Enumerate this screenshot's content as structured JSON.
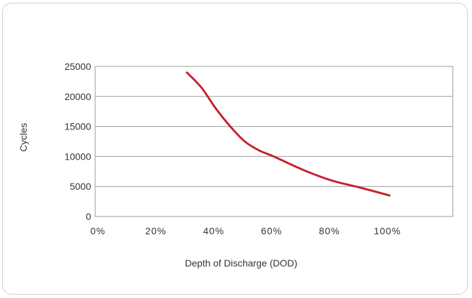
{
  "chart_data": {
    "type": "line",
    "title": "",
    "xlabel": "Depth of Discharge (DOD)",
    "ylabel": "Cycles",
    "xlim": [
      0,
      120
    ],
    "ylim": [
      0,
      25000
    ],
    "x_ticks": [
      0,
      20,
      40,
      60,
      80,
      100
    ],
    "x_tick_labels": [
      "0%",
      "20%",
      "40%",
      "60%",
      "80%",
      "100%"
    ],
    "y_ticks": [
      0,
      5000,
      10000,
      15000,
      20000,
      25000
    ],
    "y_tick_labels": [
      "0",
      "5000",
      "10000",
      "15000",
      "20000",
      "25000"
    ],
    "grid": "horizontal",
    "series": [
      {
        "color": "#c8202f",
        "x": [
          30,
          35,
          40,
          45,
          50,
          55,
          60,
          70,
          80,
          90,
          100
        ],
        "y": [
          24000,
          21500,
          18000,
          15000,
          12500,
          11000,
          10000,
          7800,
          6000,
          4800,
          3500
        ]
      }
    ]
  }
}
